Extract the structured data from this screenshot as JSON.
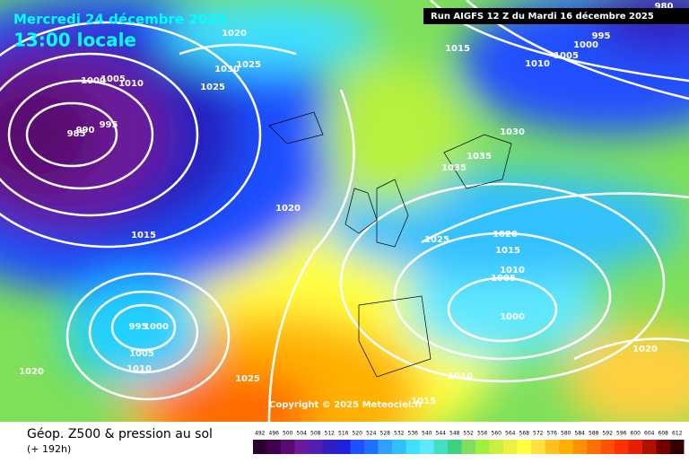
{
  "header": {
    "date": "Mercredi 24 décembre 2025",
    "time": "13:00 locale",
    "run": "Run AIGFS 12 Z du Mardi 16 décembre 2025"
  },
  "isobar_labels": [
    "1020",
    "1025",
    "1030",
    "1025",
    "1000",
    "1005",
    "1010",
    "995",
    "990",
    "985",
    "1020",
    "1015",
    "1015",
    "1010",
    "1005",
    "1000",
    "995",
    "980",
    "1030",
    "1035",
    "1035",
    "1025",
    "1020",
    "1015",
    "1010",
    "1005",
    "1000",
    "995",
    "1000",
    "1005",
    "1010",
    "1020",
    "1025",
    "1010",
    "1015",
    "1020"
  ],
  "copyright": "Copyright © 2025 Meteociel.fr",
  "footer": {
    "title": "Géop. Z500 & pression au sol",
    "lead": "(+ 192h)"
  },
  "scale_labels": [
    492,
    496,
    500,
    504,
    508,
    512,
    516,
    520,
    524,
    528,
    532,
    536,
    540,
    544,
    548,
    552,
    556,
    560,
    564,
    568,
    572,
    576,
    580,
    584,
    588,
    592,
    596,
    600,
    604,
    608,
    612
  ]
}
